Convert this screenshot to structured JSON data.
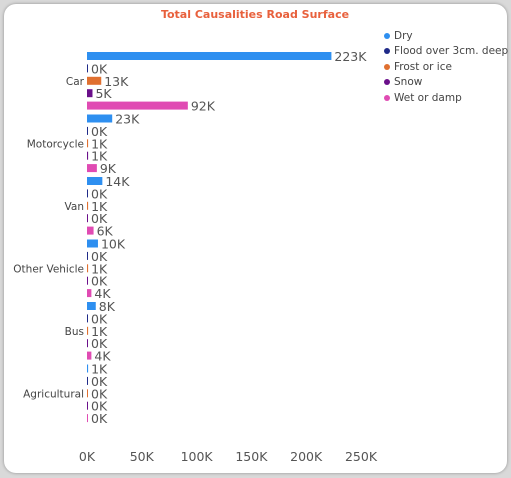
{
  "chart_data": {
    "type": "bar",
    "orientation": "horizontal",
    "title": "Total Causalities Road Surface",
    "categories": [
      "Car",
      "Motorcycle",
      "Van",
      "Other Vehicle",
      "Bus",
      "Agricultural"
    ],
    "series": [
      {
        "name": "Dry",
        "color": "#2e8ff0",
        "values": [
          223,
          23,
          14,
          10,
          8,
          1
        ],
        "labels": [
          "223K",
          "23K",
          "14K",
          "10K",
          "8K",
          "1K"
        ]
      },
      {
        "name": "Flood over 3cm. deep",
        "color": "#1f2a88",
        "values": [
          0.2,
          0.1,
          0.1,
          0.1,
          0.1,
          0.05
        ],
        "labels": [
          "0K",
          "0K",
          "0K",
          "0K",
          "0K",
          "0K"
        ]
      },
      {
        "name": "Frost or ice",
        "color": "#e07030",
        "values": [
          13,
          1,
          1,
          1,
          1,
          0.3
        ],
        "labels": [
          "13K",
          "1K",
          "1K",
          "1K",
          "1K",
          "0K"
        ]
      },
      {
        "name": "Snow",
        "color": "#6a0f8a",
        "values": [
          5,
          1,
          0.4,
          0.3,
          0.3,
          0.1
        ],
        "labels": [
          "5K",
          "1K",
          "0K",
          "0K",
          "0K",
          "0K"
        ]
      },
      {
        "name": "Wet or damp",
        "color": "#e04bb3",
        "values": [
          92,
          9,
          6,
          4,
          4,
          0.3
        ],
        "labels": [
          "92K",
          "9K",
          "6K",
          "4K",
          "4K",
          "0K"
        ]
      }
    ],
    "xlim": [
      0,
      250
    ],
    "xticks": [
      "0K",
      "50K",
      "100K",
      "150K",
      "200K",
      "250K"
    ],
    "xtick_values": [
      0,
      50,
      100,
      150,
      200,
      250
    ],
    "legend_position": "top-right",
    "grid": false
  }
}
